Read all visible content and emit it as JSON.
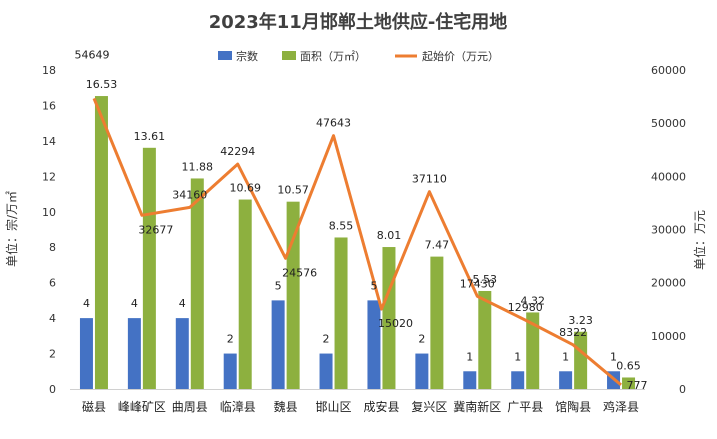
{
  "chart_data": {
    "type": "bar",
    "title": "2023年11月邯郸土地供应-住宅用地",
    "ylabel_left": "单位：宗/万㎡",
    "ylabel_right": "单位：万元",
    "ylim_left": [
      0,
      18
    ],
    "ylim_right": [
      0,
      60000
    ],
    "yticks_left": [
      "0",
      "2",
      "4",
      "6",
      "8",
      "10",
      "12",
      "14",
      "16",
      "18"
    ],
    "yticks_right": [
      "0",
      "10000",
      "20000",
      "30000",
      "40000",
      "50000",
      "60000"
    ],
    "categories": [
      "磁县",
      "峰峰矿区",
      "曲周县",
      "临漳县",
      "魏县",
      "邯山区",
      "成安县",
      "复兴区",
      "冀南新区",
      "广平县",
      "馆陶县",
      "鸡泽县"
    ],
    "series": [
      {
        "name": "宗数",
        "type": "bar",
        "axis": "left",
        "color": "#4472C4",
        "values": [
          4,
          4,
          4,
          2,
          5,
          2,
          5,
          2,
          1,
          1,
          1,
          1
        ]
      },
      {
        "name": "面积（万㎡）",
        "type": "bar",
        "axis": "left",
        "color": "#8DB03F",
        "values": [
          16.53,
          13.61,
          11.88,
          10.69,
          10.57,
          8.55,
          8.01,
          7.47,
          5.53,
          4.32,
          3.23,
          0.65
        ]
      },
      {
        "name": "起始价（万元）",
        "type": "line",
        "axis": "right",
        "color": "#ED7D31",
        "values": [
          54649,
          32677,
          34160,
          42294,
          24576,
          47643,
          15020,
          37110,
          17430,
          12980,
          8322,
          777
        ]
      }
    ],
    "legend_position": "top",
    "grid": false
  }
}
